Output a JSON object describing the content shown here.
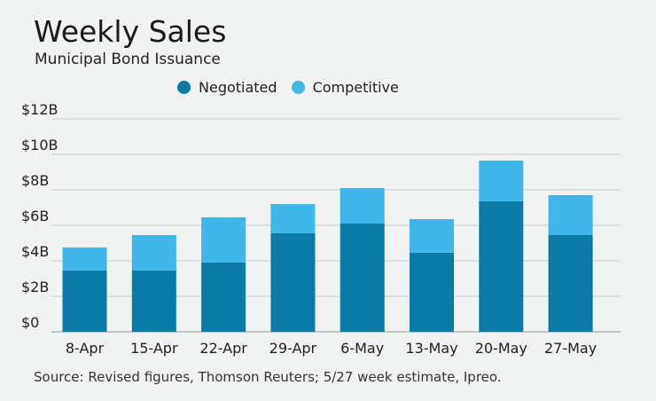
{
  "title": "Weekly Sales",
  "subtitle": "Municipal Bond Issuance",
  "source": "Source: Revised figures, Thomson Reuters; 5/27 week estimate, Ipreo.",
  "colors": {
    "negotiated": "#0a7aa6",
    "competitive": "#3fb7e8",
    "grid": "#c9cbcc",
    "background": "#f1f2f2"
  },
  "chart_data": {
    "type": "bar",
    "stacked": true,
    "title": "Weekly Sales",
    "subtitle": "Municipal Bond Issuance",
    "xlabel": "",
    "ylabel": "",
    "ylim": [
      0,
      12
    ],
    "y_ticks": [
      0,
      2,
      4,
      6,
      8,
      10,
      12
    ],
    "y_tick_labels": [
      "$0",
      "$2B",
      "$4B",
      "$6B",
      "$8B",
      "$10B",
      "$12B"
    ],
    "categories": [
      "8-Apr",
      "15-Apr",
      "22-Apr",
      "29-Apr",
      "6-May",
      "13-May",
      "20-May",
      "27-May"
    ],
    "series": [
      {
        "name": "Negotiated",
        "color": "#0a7aa6",
        "values": [
          3.45,
          3.45,
          3.9,
          5.55,
          6.1,
          4.45,
          7.35,
          5.45
        ]
      },
      {
        "name": "Competitive",
        "color": "#3fb7e8",
        "values": [
          1.3,
          2.0,
          2.55,
          1.65,
          2.0,
          1.9,
          2.3,
          2.25
        ]
      }
    ],
    "legend": "top",
    "grid": true
  }
}
